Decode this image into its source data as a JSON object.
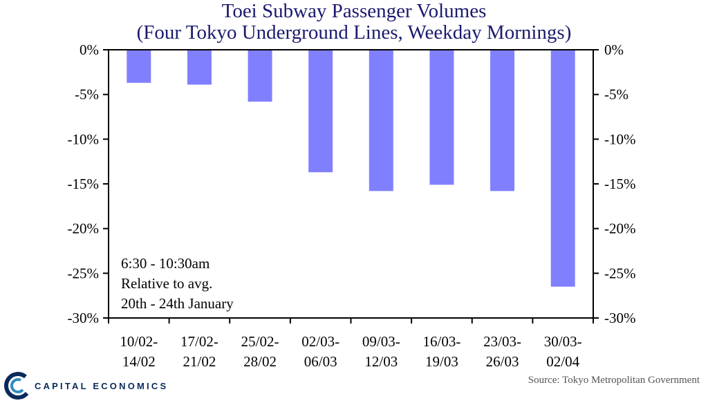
{
  "chart_data": {
    "type": "bar",
    "title": "Toei Subway Passenger Volumes",
    "subtitle": "(Four Tokyo Underground Lines, Weekday Mornings)",
    "categories": [
      [
        "10/02-",
        "14/02"
      ],
      [
        "17/02-",
        "21/02"
      ],
      [
        "25/02-",
        "28/02"
      ],
      [
        "02/03-",
        "06/03"
      ],
      [
        "09/03-",
        "12/03"
      ],
      [
        "16/03-",
        "19/03"
      ],
      [
        "23/03-",
        "26/03"
      ],
      [
        "30/03-",
        "02/04"
      ]
    ],
    "values": [
      -3.7,
      -3.9,
      -5.8,
      -13.7,
      -15.8,
      -15.1,
      -15.8,
      -26.5
    ],
    "ylim": [
      -30,
      0
    ],
    "yticks": [
      0,
      -5,
      -10,
      -15,
      -20,
      -25,
      -30
    ],
    "ytick_labels": [
      "0%",
      "-5%",
      "-10%",
      "-15%",
      "-20%",
      "-25%",
      "-30%"
    ],
    "bar_color": "#8080ff",
    "annotation": [
      "6:30  - 10:30am",
      "Relative to avg.",
      "20th  - 24th January"
    ],
    "xlabel": "",
    "ylabel": ""
  },
  "title_color": "#1a1a6e",
  "footer": {
    "logo_text": "CAPITAL ECONOMICS",
    "source": "Source: Tokyo Metropolitan Government"
  }
}
